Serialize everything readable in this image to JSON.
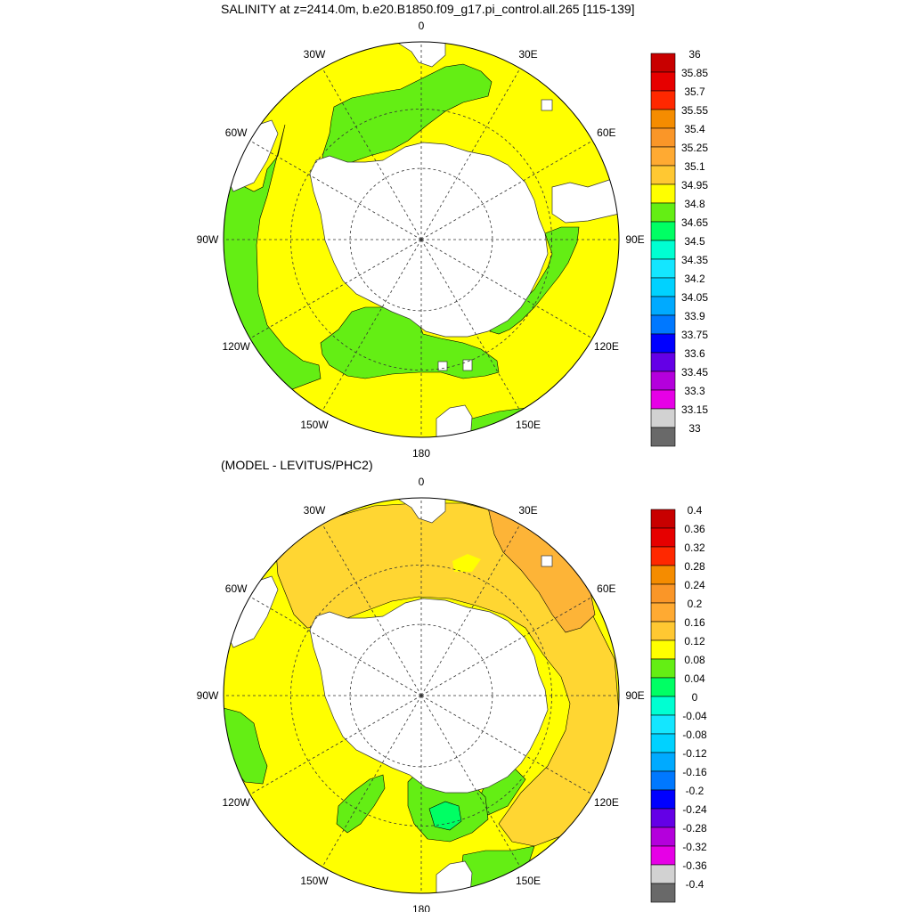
{
  "panels": [
    {
      "title": "SALINITY at z=2414.0m, b.e20.B1850.f09_g17.pi_control.all.265 [115-139]",
      "lon_labels": [
        "0",
        "30E",
        "60E",
        "90E",
        "120E",
        "150E",
        "180",
        "150W",
        "120W",
        "90W",
        "60W",
        "30W"
      ],
      "colorbar": {
        "labels": [
          "36",
          "35.85",
          "35.7",
          "35.55",
          "35.4",
          "35.25",
          "35.1",
          "34.95",
          "34.8",
          "34.65",
          "34.5",
          "34.35",
          "34.2",
          "34.05",
          "33.9",
          "33.75",
          "33.6",
          "33.45",
          "33.3",
          "33.15",
          "33"
        ],
        "colors": [
          "#c80000",
          "#e60000",
          "#ff2800",
          "#f58c00",
          "#fa9628",
          "#ffaa32",
          "#ffc832",
          "#ffff00",
          "#64ee14",
          "#00ff64",
          "#00ffd2",
          "#14e6ff",
          "#00d2ff",
          "#00aaff",
          "#0078ff",
          "#0000ff",
          "#6400e6",
          "#b400dc",
          "#e600e6",
          "#d2d2d2",
          "#696969"
        ]
      }
    },
    {
      "title": "(MODEL - LEVITUS/PHC2)",
      "lon_labels": [
        "0",
        "30E",
        "60E",
        "90E",
        "120E",
        "150E",
        "180",
        "150W",
        "120W",
        "90W",
        "60W",
        "30W"
      ],
      "colorbar": {
        "labels": [
          "0.4",
          "0.36",
          "0.32",
          "0.28",
          "0.24",
          "0.2",
          "0.16",
          "0.12",
          "0.08",
          "0.04",
          "0",
          "-0.04",
          "-0.08",
          "-0.12",
          "-0.16",
          "-0.2",
          "-0.24",
          "-0.28",
          "-0.32",
          "-0.36",
          "-0.4"
        ],
        "colors": [
          "#c80000",
          "#e60000",
          "#ff2800",
          "#f58c00",
          "#fa9628",
          "#ffaa32",
          "#ffc832",
          "#ffff00",
          "#64ee14",
          "#00ff64",
          "#00ffd2",
          "#14e6ff",
          "#00d2ff",
          "#00aaff",
          "#0078ff",
          "#0000ff",
          "#6400e6",
          "#b400dc",
          "#e600e6",
          "#d2d2d2",
          "#696969"
        ]
      }
    }
  ],
  "colors": {
    "ocean_fill": "#ffff00",
    "green_region": "#64ee14",
    "light_orange": "#ffd632",
    "orange_region": "#fdb437",
    "teal_region": "#00ff64",
    "land": "#ffffff"
  }
}
